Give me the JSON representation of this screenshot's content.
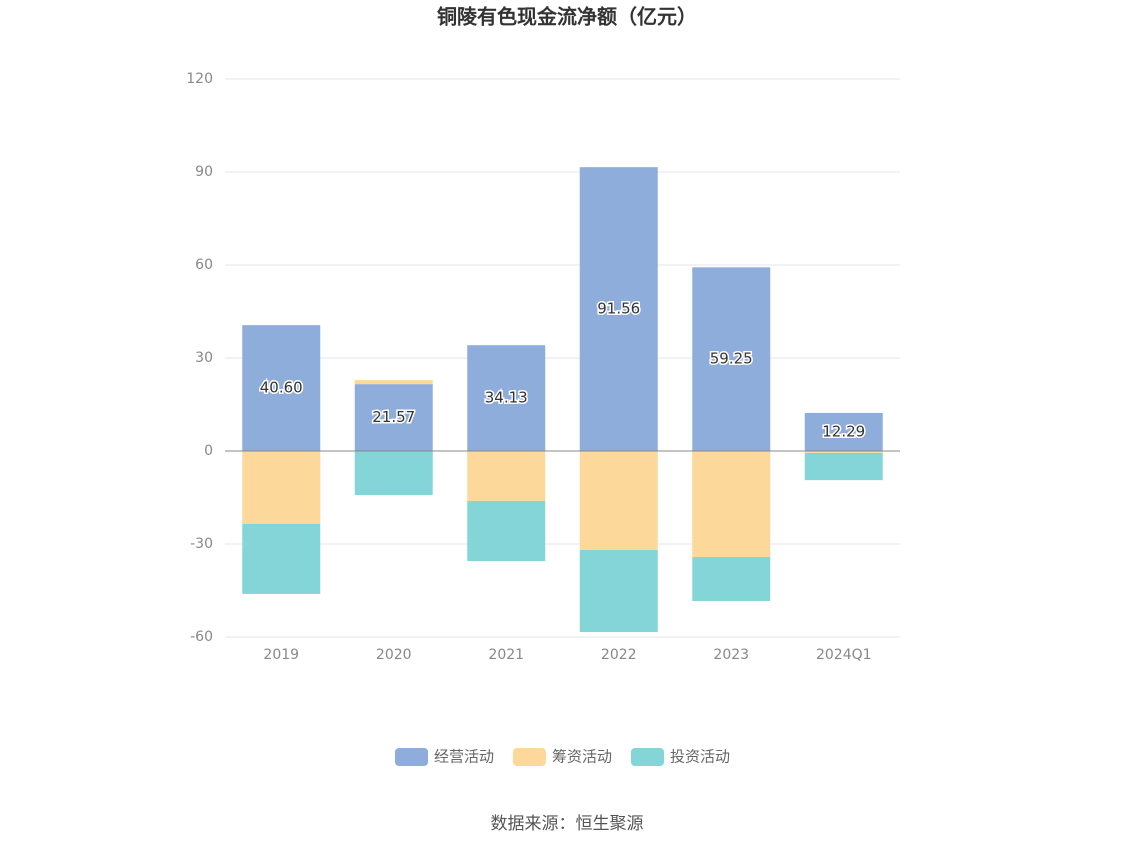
{
  "chart_data": {
    "type": "stacked-bar",
    "title": "铜陵有色现金流净额（亿元）",
    "categories": [
      "2019",
      "2020",
      "2021",
      "2022",
      "2023",
      "2024Q1"
    ],
    "series": [
      {
        "name": "经营活动",
        "color": "#8eaddb",
        "values": [
          40.6,
          21.57,
          34.13,
          91.56,
          59.25,
          12.29
        ],
        "value_labels": [
          "40.60",
          "21.57",
          "34.13",
          "91.56",
          "59.25",
          "12.29"
        ]
      },
      {
        "name": "筹资活动",
        "color": "#fdd89b",
        "values": [
          -23.5,
          1.3,
          -16.1,
          -31.9,
          -34.2,
          -0.6
        ]
      },
      {
        "name": "投资活动",
        "color": "#84d5d8",
        "values": [
          -22.6,
          -14.2,
          -19.4,
          -26.5,
          -14.2,
          -8.8
        ]
      }
    ],
    "ylim": [
      -60,
      120
    ],
    "yticks": [
      -60,
      -30,
      0,
      30,
      60,
      90,
      120
    ],
    "grid": true,
    "legend": "bottom",
    "source": "数据来源：恒生聚源"
  }
}
